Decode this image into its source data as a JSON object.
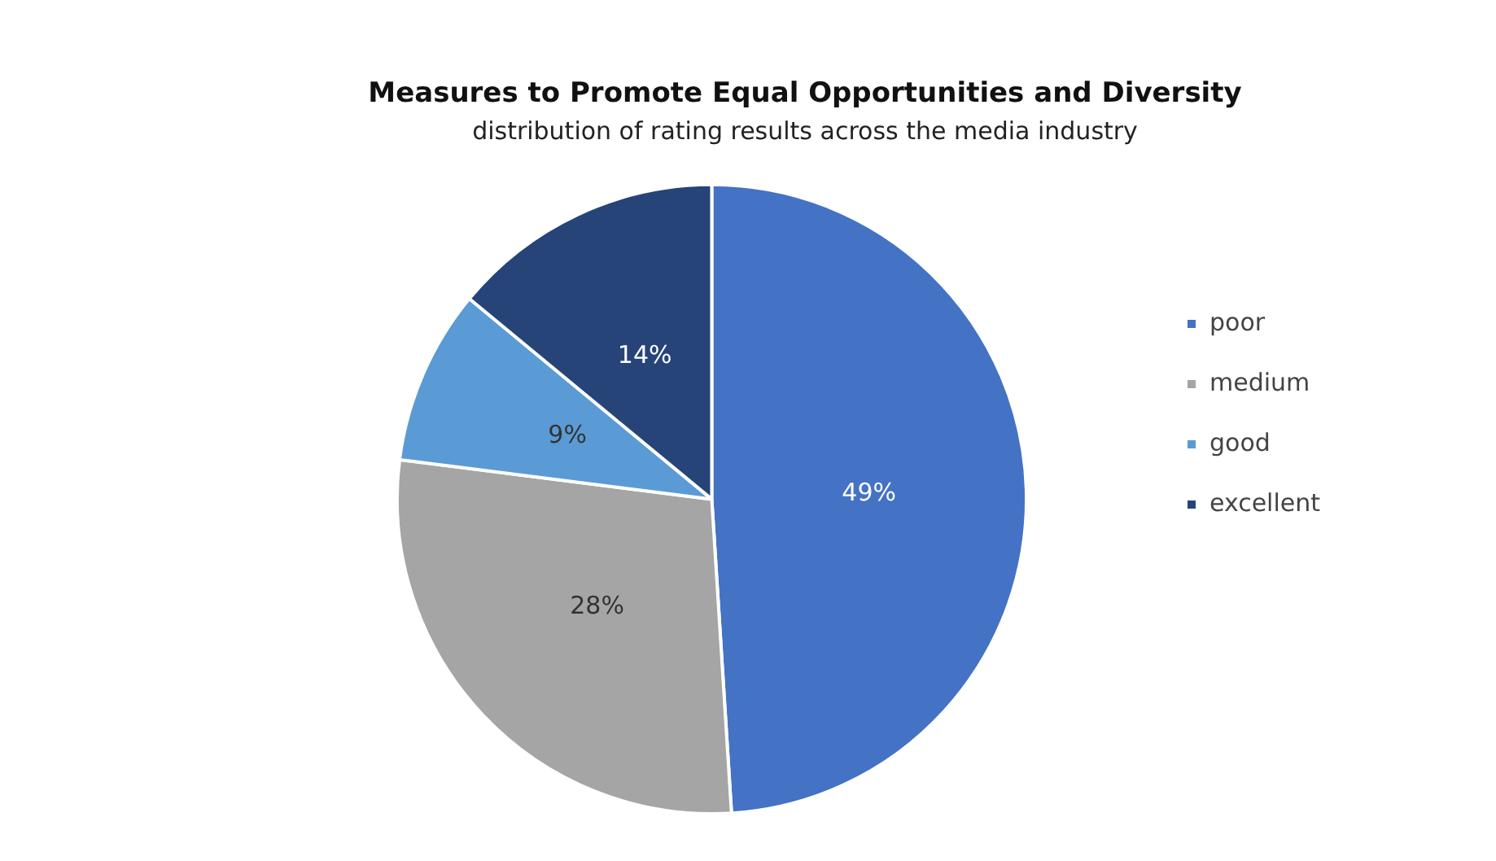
{
  "chart_data": {
    "type": "pie",
    "title": "Measures to Promote Equal Opportunities and Diversity",
    "subtitle": "distribution of rating results across the media industry",
    "categories": [
      "poor",
      "medium",
      "good",
      "excellent"
    ],
    "values": [
      49,
      28,
      9,
      14
    ],
    "colors": [
      "#4472c4",
      "#a5a5a5",
      "#5b9bd5",
      "#264478"
    ],
    "value_labels": [
      "49%",
      "28%",
      "9%",
      "14%"
    ],
    "legend": "right"
  }
}
